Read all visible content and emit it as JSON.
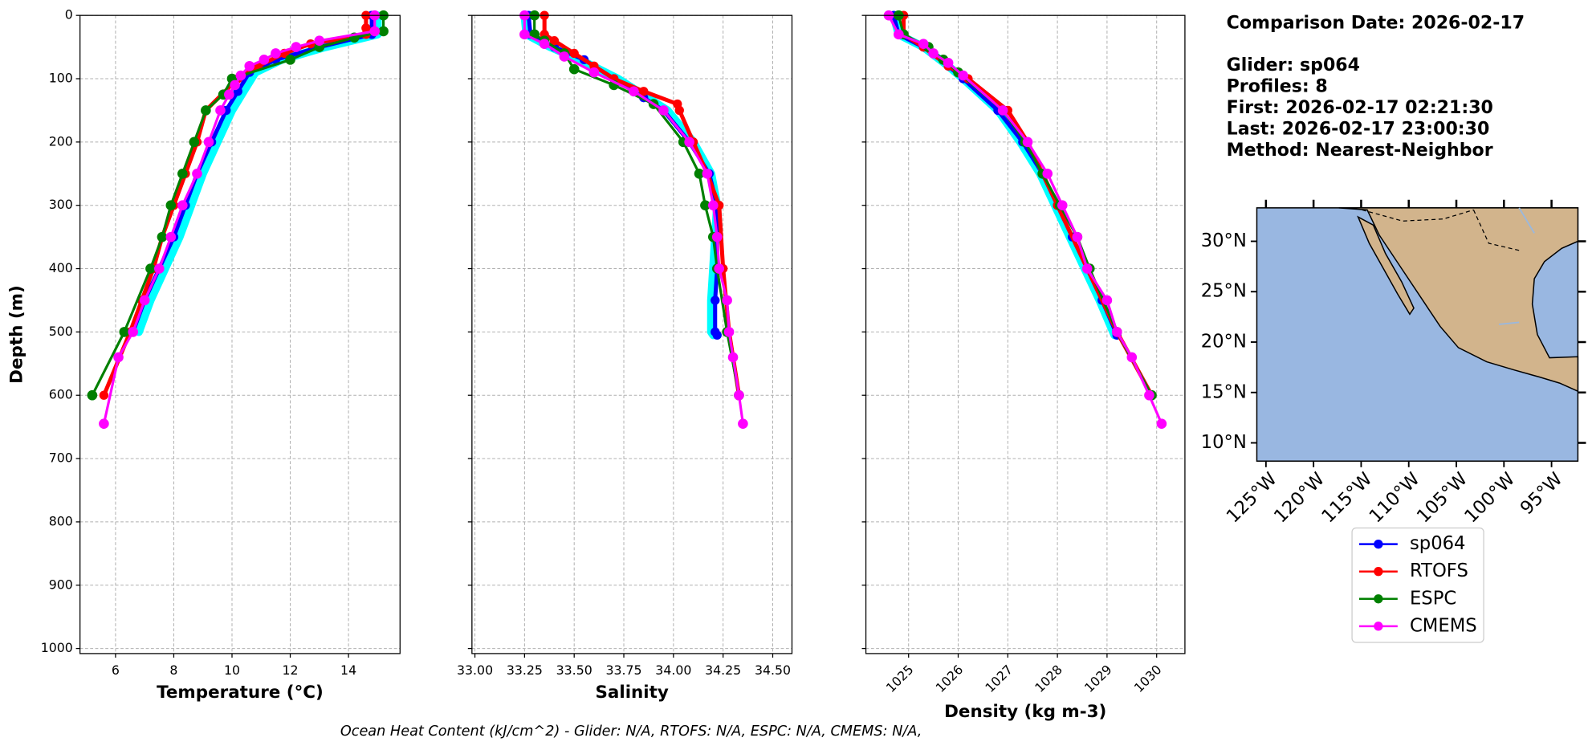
{
  "chart_data": [
    {
      "type": "line",
      "x_label": "Temperature (°C)",
      "y_label": "Depth (m)",
      "xlim": [
        4.78,
        15.77
      ],
      "xticks": [
        6,
        8,
        10,
        12,
        14
      ],
      "ylim": [
        1008,
        0
      ],
      "yticks": [
        0,
        100,
        200,
        300,
        400,
        500,
        600,
        700,
        800,
        900,
        1000
      ],
      "grid": true,
      "series": [
        {
          "color": "#00ffff",
          "depths": [
            0,
            30,
            50,
            70,
            90,
            120,
            150,
            200,
            250,
            300,
            350,
            400,
            450,
            500
          ],
          "values": [
            15.0,
            15.0,
            13.2,
            11.7,
            10.8,
            10.4,
            10.0,
            9.5,
            9.0,
            8.6,
            8.2,
            7.7,
            7.2,
            6.8
          ]
        },
        {
          "name": "sp064",
          "color": "#0000ff",
          "depths": [
            0,
            30,
            50,
            70,
            90,
            120,
            150,
            200,
            250,
            300,
            350,
            400,
            450,
            500
          ],
          "values": [
            14.8,
            14.8,
            13.0,
            11.5,
            10.6,
            10.2,
            9.8,
            9.3,
            8.8,
            8.4,
            8.0,
            7.5,
            7.0,
            6.6
          ]
        },
        {
          "name": "RTOFS",
          "color": "#ff0000",
          "depths": [
            0,
            20,
            30,
            45,
            60,
            80,
            100,
            150,
            200,
            250,
            300,
            350,
            400,
            450,
            500,
            600
          ],
          "values": [
            14.6,
            14.6,
            14.6,
            12.7,
            11.8,
            10.9,
            10.2,
            9.1,
            8.8,
            8.4,
            8.0,
            7.6,
            7.3,
            6.9,
            6.5,
            5.6
          ]
        },
        {
          "name": "ESPC",
          "color": "#008000",
          "depths": [
            0,
            25,
            35,
            50,
            70,
            100,
            125,
            150,
            200,
            250,
            300,
            350,
            400,
            500,
            600
          ],
          "values": [
            15.2,
            15.2,
            14.2,
            13.0,
            12.0,
            10.0,
            9.7,
            9.1,
            8.7,
            8.3,
            7.9,
            7.6,
            7.2,
            6.3,
            5.2
          ]
        },
        {
          "name": "CMEMS",
          "color": "#ff00ff",
          "depths": [
            0,
            25,
            40,
            50,
            60,
            70,
            80,
            95,
            110,
            125,
            150,
            200,
            250,
            300,
            350,
            400,
            450,
            500,
            540,
            645
          ],
          "values": [
            14.9,
            14.9,
            13.0,
            12.2,
            11.5,
            11.1,
            10.6,
            10.3,
            10.1,
            9.9,
            9.6,
            9.2,
            8.8,
            8.3,
            7.9,
            7.5,
            7.0,
            6.6,
            6.1,
            5.6
          ]
        }
      ]
    },
    {
      "type": "line",
      "x_label": "Salinity",
      "xlim": [
        32.985,
        34.597
      ],
      "xticks": [
        {
          "value": 33,
          "label": "33.00"
        },
        {
          "value": 33.25,
          "label": "33.25"
        },
        {
          "value": 33.5,
          "label": "33.50"
        },
        {
          "value": 33.75,
          "label": "33.75"
        },
        {
          "value": 34,
          "label": "34.00"
        },
        {
          "value": 34.25,
          "label": "34.25"
        },
        {
          "value": 34.5,
          "label": "34.50"
        }
      ],
      "ylim": [
        1008,
        0
      ],
      "yticks": [
        0,
        100,
        200,
        300,
        400,
        500,
        600,
        700,
        800,
        900,
        1000
      ],
      "grid": true,
      "series": [
        {
          "color": "#00ffff",
          "depths": [
            0,
            30,
            50,
            70,
            100,
            130,
            150,
            200,
            250,
            300,
            350,
            400,
            450,
            500,
            505
          ],
          "values": [
            33.25,
            33.26,
            33.38,
            33.53,
            33.72,
            33.87,
            33.97,
            34.1,
            34.19,
            34.22,
            34.21,
            34.2,
            34.19,
            34.19,
            34.2
          ]
        },
        {
          "name": "sp064",
          "color": "#0000ff",
          "depths": [
            0,
            30,
            50,
            70,
            100,
            130,
            150,
            200,
            250,
            300,
            350,
            400,
            450,
            500,
            505
          ],
          "values": [
            33.27,
            33.28,
            33.4,
            33.55,
            33.7,
            33.85,
            33.95,
            34.08,
            34.18,
            34.22,
            34.22,
            34.22,
            34.21,
            34.21,
            34.22
          ]
        },
        {
          "name": "RTOFS",
          "color": "#ff0000",
          "depths": [
            0,
            30,
            40,
            60,
            80,
            100,
            120,
            140,
            150,
            200,
            250,
            300,
            400,
            500,
            600
          ],
          "values": [
            33.35,
            33.35,
            33.4,
            33.5,
            33.6,
            33.7,
            33.85,
            34.02,
            34.03,
            34.1,
            34.17,
            34.23,
            34.25,
            34.28,
            34.33
          ]
        },
        {
          "name": "ESPC",
          "color": "#008000",
          "depths": [
            0,
            30,
            40,
            60,
            85,
            110,
            140,
            200,
            250,
            300,
            350,
            400,
            500,
            600
          ],
          "values": [
            33.3,
            33.3,
            33.35,
            33.45,
            33.5,
            33.7,
            33.9,
            34.05,
            34.13,
            34.16,
            34.2,
            34.22,
            34.27,
            34.33
          ]
        },
        {
          "name": "CMEMS",
          "color": "#ff00ff",
          "depths": [
            0,
            30,
            45,
            65,
            90,
            120,
            150,
            200,
            250,
            300,
            350,
            400,
            450,
            500,
            540,
            600,
            645
          ],
          "values": [
            33.25,
            33.25,
            33.35,
            33.45,
            33.6,
            33.8,
            33.95,
            34.08,
            34.17,
            34.2,
            34.22,
            34.23,
            34.27,
            34.28,
            34.3,
            34.33,
            34.35
          ]
        }
      ]
    },
    {
      "type": "line",
      "x_label": "Density (kg m-3)",
      "xlim": [
        1024.14,
        1030.57
      ],
      "xticks": [
        1025,
        1026,
        1027,
        1028,
        1029,
        1030
      ],
      "ylim": [
        1008,
        0
      ],
      "yticks": [
        0,
        100,
        200,
        300,
        400,
        500,
        600,
        700,
        800,
        900,
        1000
      ],
      "grid": true,
      "series": [
        {
          "color": "#00ffff",
          "depths": [
            0,
            30,
            50,
            80,
            100,
            150,
            200,
            250,
            300,
            350,
            400,
            450,
            505
          ],
          "values": [
            1024.7,
            1024.8,
            1025.3,
            1025.8,
            1026.1,
            1026.8,
            1027.25,
            1027.65,
            1027.95,
            1028.25,
            1028.55,
            1028.85,
            1029.15
          ]
        },
        {
          "name": "sp064",
          "color": "#0000ff",
          "depths": [
            0,
            30,
            50,
            80,
            100,
            150,
            200,
            250,
            300,
            350,
            400,
            450,
            505
          ],
          "values": [
            1024.7,
            1024.8,
            1025.3,
            1025.8,
            1026.1,
            1026.8,
            1027.3,
            1027.7,
            1028.0,
            1028.3,
            1028.6,
            1028.9,
            1029.2
          ]
        },
        {
          "name": "RTOFS",
          "color": "#ff0000",
          "depths": [
            0,
            30,
            50,
            80,
            100,
            150,
            200,
            300,
            400,
            500,
            600
          ],
          "values": [
            1024.9,
            1024.9,
            1025.3,
            1025.8,
            1026.2,
            1027.0,
            1027.4,
            1028.0,
            1028.6,
            1029.2,
            1029.9
          ]
        },
        {
          "name": "ESPC",
          "color": "#008000",
          "depths": [
            0,
            30,
            50,
            70,
            90,
            150,
            200,
            250,
            300,
            350,
            400,
            500,
            600
          ],
          "values": [
            1024.8,
            1024.9,
            1025.4,
            1025.7,
            1026.0,
            1026.9,
            1027.35,
            1027.7,
            1028.05,
            1028.4,
            1028.65,
            1029.2,
            1029.9
          ]
        },
        {
          "name": "CMEMS",
          "color": "#ff00ff",
          "depths": [
            0,
            30,
            45,
            60,
            75,
            95,
            150,
            200,
            250,
            300,
            350,
            400,
            450,
            500,
            540,
            600,
            645
          ],
          "values": [
            1024.6,
            1024.8,
            1025.3,
            1025.5,
            1025.8,
            1026.1,
            1026.9,
            1027.4,
            1027.8,
            1028.1,
            1028.4,
            1028.6,
            1029.0,
            1029.2,
            1029.5,
            1029.85,
            1030.1
          ]
        }
      ]
    }
  ],
  "info": [
    "Comparison Date: 2026-02-17",
    "Glider: sp064",
    "Profiles: 8",
    "First: 2026-02-17 02:21:30",
    "Last: 2026-02-17 23:00:30",
    "Method: Nearest-Neighbor"
  ],
  "map": {
    "lat_ticks": [
      {
        "value": 30,
        "label": "30°N"
      },
      {
        "value": 25,
        "label": "25°N"
      },
      {
        "value": 20,
        "label": "20°N"
      },
      {
        "value": 15,
        "label": "15°N"
      },
      {
        "value": 10,
        "label": "10°N"
      }
    ],
    "lon_ticks": [
      {
        "value": -125,
        "label": "125°W"
      },
      {
        "value": -120,
        "label": "120°W"
      },
      {
        "value": -115,
        "label": "115°W"
      },
      {
        "value": -110,
        "label": "110°W"
      },
      {
        "value": -105,
        "label": "105°W"
      },
      {
        "value": -100,
        "label": "100°W"
      },
      {
        "value": -95,
        "label": "95°W"
      }
    ]
  },
  "footer": "Ocean Heat Content (kJ/cm^2) - Glider: N/A,  RTOFS: N/A,  ESPC: N/A,  CMEMS: N/A,"
}
